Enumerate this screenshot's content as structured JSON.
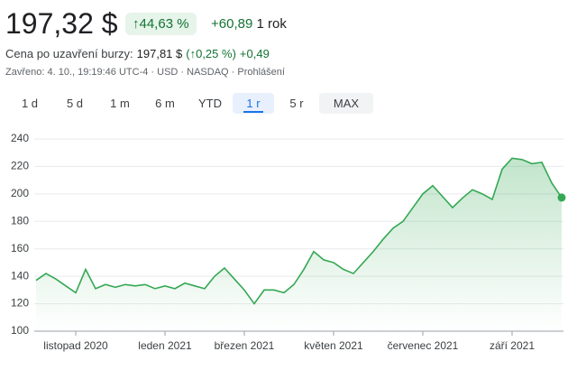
{
  "header": {
    "price": "197,32 $",
    "change_pct": "44,63 %",
    "change_abs": "+60,89",
    "period": "1 rok"
  },
  "after_hours": {
    "label": "Cena po uzavření burzy:",
    "price": "197,81 $",
    "open": "(",
    "change_pct": "0,25 %)",
    "change_abs": "+0,49"
  },
  "meta": {
    "text": "Zavřeno: 4. 10., 19:19:46 UTC-4 · USD · NASDAQ ·",
    "disclaimer": "Prohlášení"
  },
  "ranges": {
    "buttons": [
      "1 d",
      "5 d",
      "1 m",
      "6 m",
      "YTD",
      "1 r",
      "5 r",
      "MAX"
    ],
    "active": 5
  },
  "chart_data": {
    "type": "line",
    "categories": [
      null,
      null,
      null,
      null,
      "listopad 2020",
      null,
      null,
      null,
      null,
      null,
      null,
      null,
      null,
      "leden 2021",
      null,
      null,
      null,
      null,
      null,
      null,
      null,
      "březen 2021",
      null,
      null,
      null,
      null,
      null,
      null,
      null,
      null,
      "květen 2021",
      null,
      null,
      null,
      null,
      null,
      null,
      null,
      null,
      "červenec 2021",
      null,
      null,
      null,
      null,
      null,
      null,
      null,
      null,
      "září 2021",
      null,
      null,
      null,
      null,
      null
    ],
    "series": [
      {
        "color": "#34a853",
        "values": [
          137,
          142,
          138,
          133,
          128,
          145,
          131,
          134,
          132,
          134,
          133,
          134,
          131,
          133,
          131,
          135,
          133,
          131,
          140,
          146,
          138,
          130,
          120,
          130,
          130,
          128,
          134,
          145,
          158,
          152,
          150,
          145,
          142,
          150,
          158,
          167,
          175,
          180,
          190,
          200,
          206,
          198,
          190,
          197,
          203,
          200,
          196,
          218,
          226,
          225,
          222,
          223,
          208,
          197.32
        ]
      }
    ],
    "ylim": [
      100,
      240
    ],
    "yticks": [
      100,
      120,
      140,
      160,
      180,
      200,
      220,
      240
    ],
    "grid": true
  }
}
